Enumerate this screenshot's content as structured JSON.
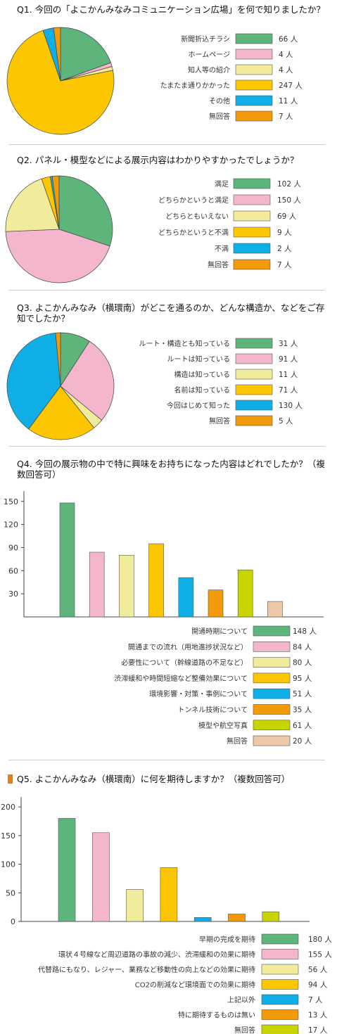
{
  "chart_data": [
    {
      "id": "q1",
      "type": "pie",
      "title": "Q1. 今回の「よこかんみなみコミュニケーション広場」を何で知りましたか？",
      "unit": "人",
      "categories": [
        "新聞折込チラシ",
        "ホームページ",
        "知人等の紹介",
        "たまたま通りかかった",
        "その他",
        "無回答"
      ],
      "values": [
        66,
        4,
        4,
        247,
        11,
        7
      ],
      "colors": [
        "#5db57b",
        "#f4b6cd",
        "#f0ec9c",
        "#fcc600",
        "#10aee6",
        "#f39a0a"
      ]
    },
    {
      "id": "q2",
      "type": "pie",
      "title": "Q2. パネル・模型などによる展示内容はわかりやすかったでしょうか？",
      "unit": "人",
      "categories": [
        "満足",
        "どちらかというと満足",
        "どちらともいえない",
        "どちらかというと不満",
        "不満",
        "無回答"
      ],
      "values": [
        102,
        150,
        69,
        9,
        2,
        7
      ],
      "colors": [
        "#5db57b",
        "#f4b6cd",
        "#f0ec9c",
        "#fcc600",
        "#10aee6",
        "#f39a0a"
      ]
    },
    {
      "id": "q3",
      "type": "pie",
      "title": "Q3. よこかんみなみ（横環南）がどこを通るのか、どんな構造か、などをご存知でしたか？",
      "unit": "人",
      "categories": [
        "ルート・構造とも知っている",
        "ルートは知っている",
        "構造は知っている",
        "名前は知っている",
        "今回はじめて知った",
        "無回答"
      ],
      "values": [
        31,
        91,
        11,
        71,
        130,
        5
      ],
      "colors": [
        "#5db57b",
        "#f4b6cd",
        "#f0ec9c",
        "#fcc600",
        "#10aee6",
        "#f39a0a"
      ]
    },
    {
      "id": "q4",
      "type": "bar",
      "title": "Q4. 今回の展示物の中で特に興味をお持ちになった内容はどれでしたか？（複数回答可）",
      "unit": "人",
      "categories": [
        "開通時期について",
        "開通までの流れ（用地進捗状況など）",
        "必要性について（幹線道路の不足など）",
        "渋滞緩和や時間短縮など整備効果について",
        "環境影響・対策・事例について",
        "トンネル技術について",
        "模型や航空写真",
        "無回答"
      ],
      "values": [
        148,
        84,
        80,
        95,
        51,
        35,
        61,
        20
      ],
      "colors": [
        "#5db57b",
        "#f4b6cd",
        "#f0ec9c",
        "#fcc600",
        "#10aee6",
        "#f39a0a",
        "#c8d400",
        "#eec7a6"
      ],
      "yticks": [
        30,
        60,
        90,
        120,
        150
      ],
      "ylim": [
        0,
        158
      ]
    },
    {
      "id": "q5",
      "type": "bar",
      "title": "Q5. よこかんみなみ（横環南）に何を期待しますか？（複数回答可）",
      "unit": "人",
      "categories": [
        "早期の完成を期待",
        "環状４号線など周辺道路の事故の減少、渋滞緩和の効果に期待",
        "代替路にもなり、レジャー、業務など移動性の向上などの効果に期待",
        "CO2の削減など環境面での効果に期待",
        "上記以外",
        "特に期待するものは無い",
        "無回答"
      ],
      "values": [
        180,
        155,
        56,
        94,
        7,
        13,
        17
      ],
      "colors": [
        "#5db57b",
        "#f4b6cd",
        "#f0ec9c",
        "#fcc600",
        "#10aee6",
        "#f39a0a",
        "#c8d400"
      ],
      "yticks": [
        0,
        50,
        100,
        150,
        200
      ],
      "ylim": [
        0,
        210
      ]
    }
  ]
}
